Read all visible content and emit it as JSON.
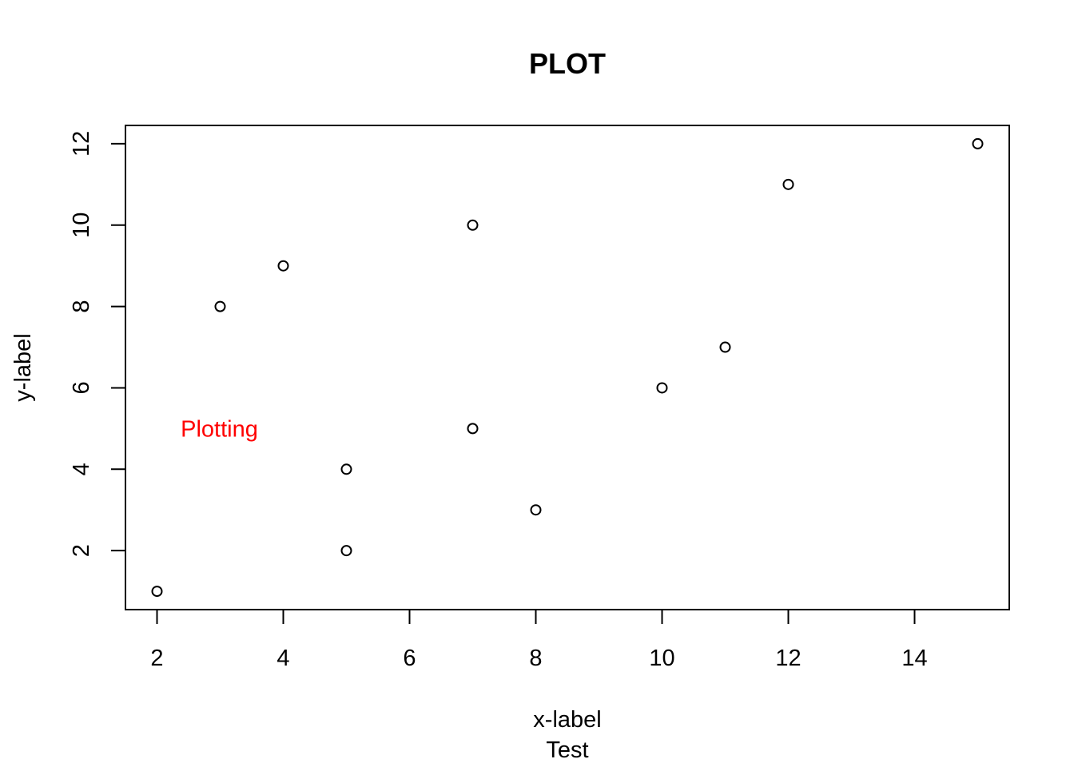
{
  "chart_data": {
    "type": "scatter",
    "title": "PLOT",
    "xlabel": "x-label",
    "subtitle": "Test",
    "ylabel": "y-label",
    "xlim": [
      1.5,
      15.5
    ],
    "ylim": [
      0.55,
      12.45
    ],
    "xticks": [
      2,
      4,
      6,
      8,
      10,
      12,
      14
    ],
    "yticks": [
      2,
      4,
      6,
      8,
      10,
      12
    ],
    "points": [
      {
        "x": 2,
        "y": 1
      },
      {
        "x": 3,
        "y": 8
      },
      {
        "x": 4,
        "y": 9
      },
      {
        "x": 5,
        "y": 4
      },
      {
        "x": 5,
        "y": 2
      },
      {
        "x": 7,
        "y": 10
      },
      {
        "x": 7,
        "y": 5
      },
      {
        "x": 8,
        "y": 3
      },
      {
        "x": 10,
        "y": 6
      },
      {
        "x": 11,
        "y": 7
      },
      {
        "x": 12,
        "y": 11
      },
      {
        "x": 15,
        "y": 12
      }
    ],
    "grid": false,
    "marker": "open-circle",
    "annotation": {
      "text": "Plotting",
      "x": 3,
      "y": 5,
      "color": "#ff0000"
    }
  }
}
